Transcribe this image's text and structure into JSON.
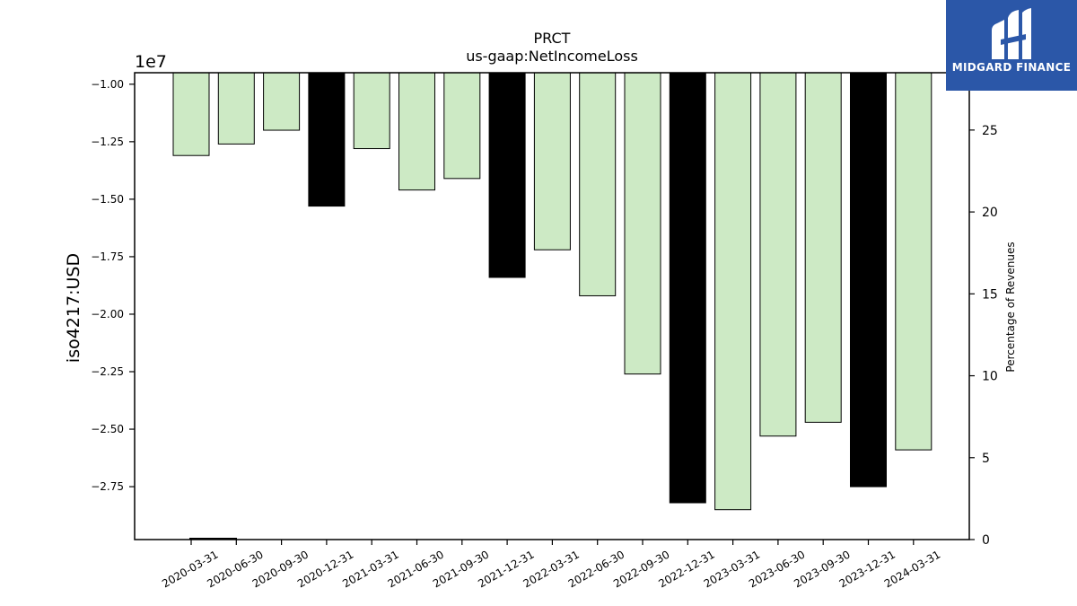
{
  "chart_data": {
    "type": "bar",
    "title": "PRCT",
    "subtitle": "us-gaap:NetIncomeLoss",
    "ylabel": "iso4217:USD",
    "y_offset_label": "1e7",
    "y2label": "Percentage of Revenues",
    "categories": [
      "2020-03-31",
      "2020-06-30",
      "2020-09-30",
      "2020-12-31",
      "2021-03-31",
      "2021-06-30",
      "2021-09-30",
      "2021-12-31",
      "2022-03-31",
      "2022-06-30",
      "2022-09-30",
      "2022-12-31",
      "2023-03-31",
      "2023-06-30",
      "2023-09-30",
      "2023-12-31",
      "2024-03-31"
    ],
    "values": [
      -13100000,
      -12600000,
      -12000000,
      -15300000,
      -12800000,
      -14600000,
      -14100000,
      -18400000,
      -17200000,
      -19200000,
      -22600000,
      -28200000,
      -28500000,
      -25300000,
      -24700000,
      -27500000,
      -25900000
    ],
    "annual": [
      false,
      false,
      false,
      true,
      false,
      false,
      false,
      true,
      false,
      false,
      false,
      true,
      false,
      false,
      false,
      true,
      false
    ],
    "colors": {
      "quarterly": "#cdeac5",
      "annual": "#000000",
      "edge": "#000000"
    },
    "yticks": [
      -10000000,
      -12500000,
      -15000000,
      -17500000,
      -20000000,
      -22500000,
      -25000000,
      -27500000
    ],
    "ytick_labels": [
      "−1.00",
      "−1.25",
      "−1.50",
      "−1.75",
      "−2.00",
      "−2.25",
      "−2.50",
      "−2.75"
    ],
    "ylim": [
      -29800000,
      -9500000
    ],
    "y2ticks": [
      0,
      5,
      10,
      15,
      20,
      25
    ],
    "y2lim": [
      0,
      28.5
    ],
    "grid": false,
    "legend": "none"
  },
  "logo": {
    "text": "MIDGARD FINANCE"
  }
}
